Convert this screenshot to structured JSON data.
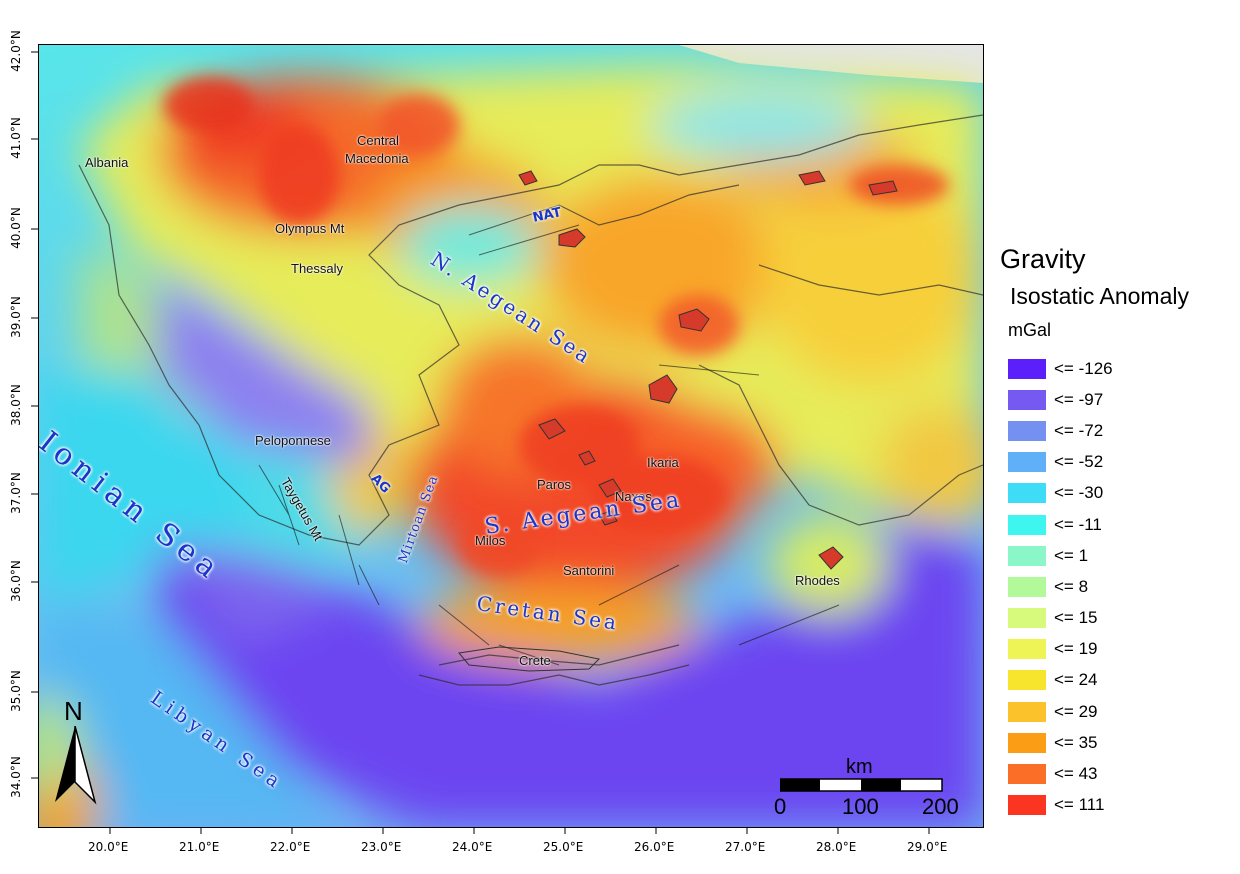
{
  "legend": {
    "title": "Gravity",
    "subtitle": "Isostatic Anomaly",
    "unit": "mGal",
    "classes": [
      {
        "label": "<= -126",
        "color": "#5b1ffb"
      },
      {
        "label": "<= -97",
        "color": "#7559f2"
      },
      {
        "label": "<= -72",
        "color": "#7491f2"
      },
      {
        "label": "<= -52",
        "color": "#5fb0f7"
      },
      {
        "label": "<= -30",
        "color": "#3fdcf7"
      },
      {
        "label": "<= -11",
        "color": "#3ff5ef"
      },
      {
        "label": "<= 1",
        "color": "#8bf7c9"
      },
      {
        "label": "<= 8",
        "color": "#b2f99a"
      },
      {
        "label": "<= 15",
        "color": "#d7f97c"
      },
      {
        "label": "<= 19",
        "color": "#eef455"
      },
      {
        "label": "<= 24",
        "color": "#f7e52d"
      },
      {
        "label": "<= 29",
        "color": "#fbc22c"
      },
      {
        "label": "<= 35",
        "color": "#fb9e16"
      },
      {
        "label": "<= 43",
        "color": "#fb6e28"
      },
      {
        "label": "<= 111",
        "color": "#fb3522"
      }
    ]
  },
  "axes": {
    "longitudes": [
      "20.0°E",
      "21.0°E",
      "22.0°E",
      "23.0°E",
      "24.0°E",
      "25.0°E",
      "26.0°E",
      "27.0°E",
      "28.0°E",
      "29.0°E"
    ],
    "latitudes": [
      "42.0°N",
      "41.0°N",
      "40.0°N",
      "39.0°N",
      "38.0°N",
      "37.0°N",
      "36.0°N",
      "35.0°N",
      "34.0°N"
    ]
  },
  "places": {
    "albania": "Albania",
    "central": "Central",
    "macedonia": "Macedonia",
    "olympus": "Olympus Mt",
    "thessaly": "Thessaly",
    "peloponnese": "Peloponnese",
    "taygetus": "Taygetus Mt",
    "paros": "Paros",
    "naxos": "Naxos",
    "ikaria": "Ikaria",
    "milos": "Milos",
    "santorini": "Santorini",
    "rhodes": "Rhodes",
    "crete": "Crete"
  },
  "seas": {
    "n_aegean": "N. Aegean Sea",
    "s_aegean": "S. Aegean Sea",
    "cretan": "Cretan Sea",
    "ionian": "Ionian Sea",
    "libyan": "Libyan Sea",
    "mirtoan": "Mirtoan Sea"
  },
  "faults": {
    "nat": "NAT",
    "ag": "AG"
  },
  "scalebar": {
    "unit": "km",
    "labels": [
      "0",
      "100",
      "200"
    ]
  },
  "north": {
    "label": "N"
  }
}
